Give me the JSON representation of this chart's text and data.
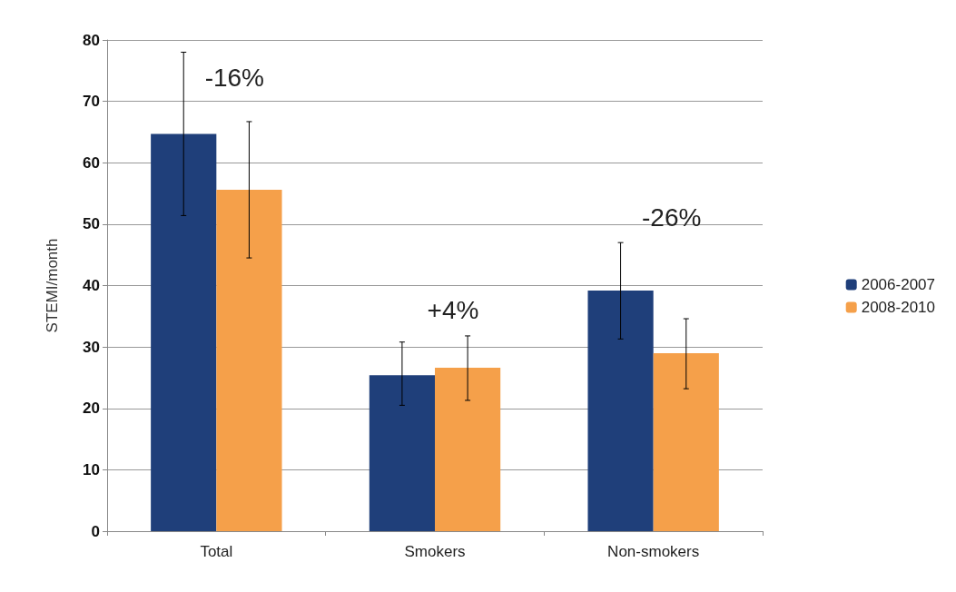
{
  "chart_data": {
    "type": "bar",
    "ylabel": "STEMI/month",
    "categories": [
      "Total",
      "Smokers",
      "Non-smokers"
    ],
    "series": [
      {
        "name": "2006-2007",
        "color": "#1f3f7a",
        "values": [
          64.7,
          25.4,
          39.2
        ],
        "errors": [
          [
            51.4,
            78
          ],
          [
            20.5,
            30.8
          ],
          [
            31.3,
            47
          ]
        ]
      },
      {
        "name": "2008-2010",
        "color": "#f5a04a",
        "values": [
          55.6,
          26.6,
          29
        ],
        "errors": [
          [
            44.5,
            66.7
          ],
          [
            21.3,
            31.8
          ],
          [
            23.2,
            34.6
          ]
        ]
      }
    ],
    "ylim": [
      0,
      80
    ],
    "yticks": [
      0,
      10,
      20,
      30,
      40,
      50,
      60,
      70,
      80
    ],
    "grid": "y",
    "legend": "right",
    "annotations": [
      "-16%",
      "+4%",
      "-26%"
    ]
  }
}
